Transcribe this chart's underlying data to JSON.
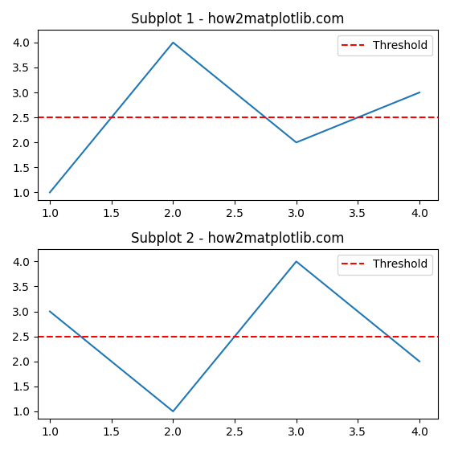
{
  "subplot1": {
    "title": "Subplot 1 - how2matplotlib.com",
    "x": [
      1,
      2,
      3,
      4
    ],
    "y": [
      1,
      4,
      2,
      3
    ],
    "hline_y": 2.5,
    "hline_label": "Threshold",
    "hline_color": "red",
    "hline_style": "--",
    "line_color": "#1f77b4",
    "xlim": [
      0.9,
      4.15
    ],
    "ylim": [
      0.85,
      4.25
    ],
    "xticks": [
      1.0,
      1.5,
      2.0,
      2.5,
      3.0,
      3.5,
      4.0
    ],
    "yticks": [
      1.0,
      1.5,
      2.0,
      2.5,
      3.0,
      3.5,
      4.0
    ]
  },
  "subplot2": {
    "title": "Subplot 2 - how2matplotlib.com",
    "x": [
      1,
      2,
      3,
      4
    ],
    "y": [
      3,
      1,
      4,
      2
    ],
    "hline_y": 2.5,
    "hline_label": "Threshold",
    "hline_color": "red",
    "hline_style": "--",
    "line_color": "#1f77b4",
    "xlim": [
      0.9,
      4.15
    ],
    "ylim": [
      0.85,
      4.25
    ],
    "xticks": [
      1.0,
      1.5,
      2.0,
      2.5,
      3.0,
      3.5,
      4.0
    ],
    "yticks": [
      1.0,
      1.5,
      2.0,
      2.5,
      3.0,
      3.5,
      4.0
    ]
  }
}
